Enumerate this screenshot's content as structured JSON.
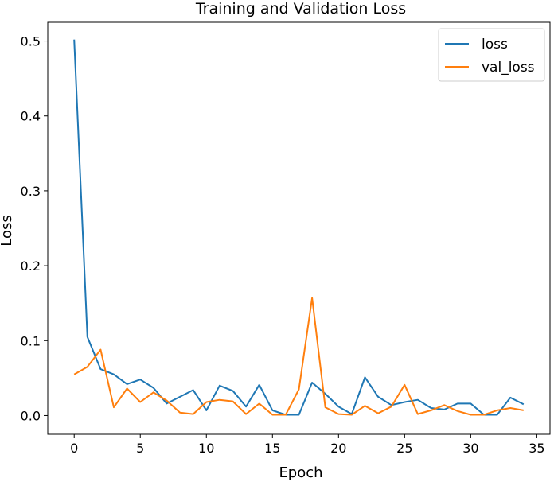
{
  "chart_data": {
    "type": "line",
    "title": "Training and Validation Loss",
    "xlabel": "Epoch",
    "ylabel": "Loss",
    "xlim": [
      -2,
      36
    ],
    "ylim": [
      -0.025,
      0.525
    ],
    "xticks": [
      0,
      5,
      10,
      15,
      20,
      25,
      30,
      35
    ],
    "yticks": [
      0.0,
      0.1,
      0.2,
      0.3,
      0.4,
      0.5
    ],
    "xtick_labels": [
      "0",
      "5",
      "10",
      "15",
      "20",
      "25",
      "30",
      "35"
    ],
    "ytick_labels": [
      "0.0",
      "0.1",
      "0.2",
      "0.3",
      "0.4",
      "0.5"
    ],
    "grid": false,
    "legend_position": "top-right",
    "x": [
      0,
      1,
      2,
      3,
      4,
      5,
      6,
      7,
      8,
      9,
      10,
      11,
      12,
      13,
      14,
      15,
      16,
      17,
      18,
      19,
      20,
      21,
      22,
      23,
      24,
      25,
      26,
      27,
      28,
      29,
      30,
      31,
      32,
      33,
      34
    ],
    "series": [
      {
        "name": "loss",
        "color": "#1f77b4",
        "values": [
          0.502,
          0.105,
          0.062,
          0.055,
          0.042,
          0.048,
          0.037,
          0.016,
          0.025,
          0.034,
          0.007,
          0.04,
          0.033,
          0.012,
          0.041,
          0.007,
          0.001,
          0.001,
          0.044,
          0.029,
          0.012,
          0.002,
          0.051,
          0.025,
          0.014,
          0.018,
          0.021,
          0.01,
          0.008,
          0.016,
          0.016,
          0.001,
          0.001,
          0.024,
          0.015
        ]
      },
      {
        "name": "val_loss",
        "color": "#ff7f0e",
        "values": [
          0.055,
          0.065,
          0.088,
          0.011,
          0.036,
          0.018,
          0.031,
          0.02,
          0.004,
          0.002,
          0.018,
          0.021,
          0.019,
          0.002,
          0.016,
          0.001,
          0.001,
          0.035,
          0.157,
          0.011,
          0.002,
          0.001,
          0.013,
          0.003,
          0.012,
          0.041,
          0.002,
          0.007,
          0.014,
          0.006,
          0.001,
          0.001,
          0.007,
          0.01,
          0.007
        ]
      }
    ]
  }
}
